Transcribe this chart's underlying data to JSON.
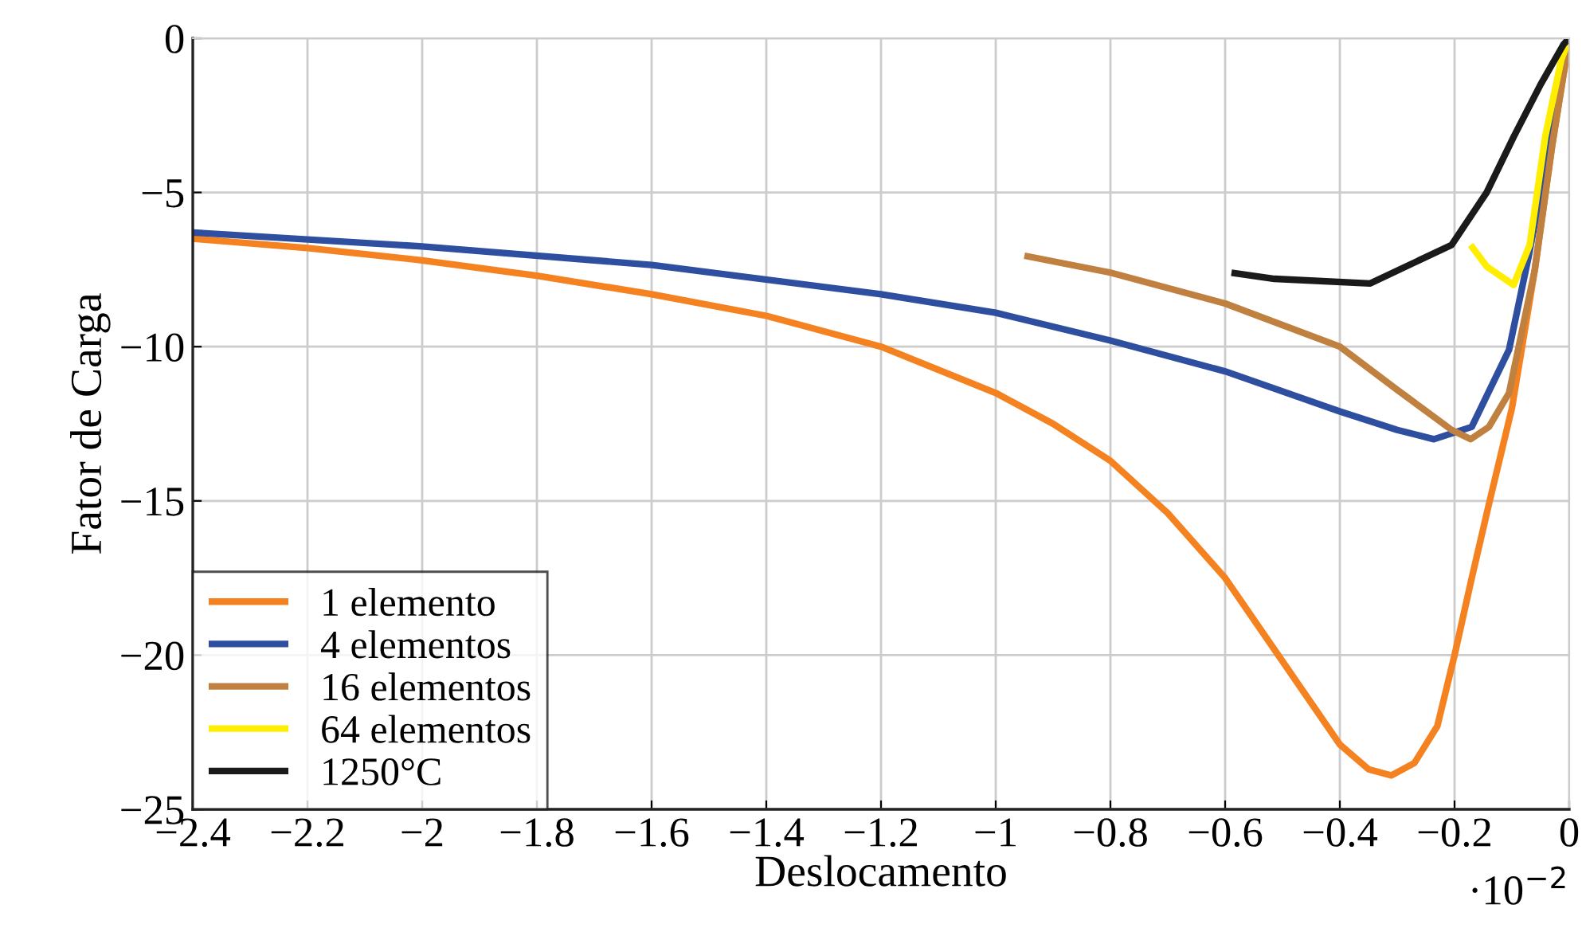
{
  "chart_data": {
    "type": "line",
    "xlabel": "Deslocamento",
    "ylabel": "Fator de Carga",
    "annotations": [
      "·10$^{−2}$"
    ],
    "xlim": [
      -2.4,
      0
    ],
    "ylim": [
      -25,
      0
    ],
    "xticks": [
      {
        "value": -2.4,
        "label": "−2.4"
      },
      {
        "value": -2.2,
        "label": "−2.2"
      },
      {
        "value": -2,
        "label": "−2"
      },
      {
        "value": -1.8,
        "label": "−1.8"
      },
      {
        "value": -1.6,
        "label": "−1.6"
      },
      {
        "value": -1.4,
        "label": "−1.4"
      },
      {
        "value": -1.2,
        "label": "−1.2"
      },
      {
        "value": -1,
        "label": "−1"
      },
      {
        "value": -0.8,
        "label": "−0.8"
      },
      {
        "value": -0.6,
        "label": "−0.6"
      },
      {
        "value": -0.4,
        "label": "−0.4"
      },
      {
        "value": -0.2,
        "label": "−0.2"
      },
      0
    ],
    "yticks": [
      {
        "value": -25,
        "label": "−25"
      },
      {
        "value": -20,
        "label": "−20"
      },
      {
        "value": -15,
        "label": "−15"
      },
      {
        "value": -10,
        "label": "−10"
      },
      {
        "value": -5,
        "label": "−5"
      },
      0
    ],
    "grid": true,
    "legend": "bottom left",
    "marker": "none",
    "line_style": "solid",
    "series": [
      {
        "name": "1 elemento",
        "color": "#f58220",
        "x": [
          -2.4,
          -2.2,
          -2.0,
          -1.8,
          -1.6,
          -1.4,
          -1.2,
          -1.0,
          -0.9,
          -0.8,
          -0.7,
          -0.6,
          -0.5,
          -0.4,
          -0.35,
          -0.31,
          -0.27,
          -0.23,
          -0.2,
          -0.17,
          -0.14,
          -0.1,
          -0.06,
          -0.03,
          0
        ],
        "values": [
          -6.5,
          -6.8,
          -7.2,
          -7.7,
          -8.3,
          -9.0,
          -10.0,
          -11.5,
          -12.5,
          -13.7,
          -15.4,
          -17.5,
          -20.2,
          -22.9,
          -23.7,
          -23.9,
          -23.5,
          -22.3,
          -20.0,
          -17.5,
          -15.1,
          -12.0,
          -7.5,
          -3.5,
          0
        ]
      },
      {
        "name": "4 elementos",
        "color": "#2e4fa0",
        "x": [
          -2.4,
          -2.0,
          -1.6,
          -1.2,
          -1.0,
          -0.8,
          -0.6,
          -0.4,
          -0.3,
          -0.236,
          -0.17,
          -0.105,
          -0.07,
          -0.03,
          0
        ],
        "values": [
          -6.3,
          -6.75,
          -7.35,
          -8.3,
          -8.9,
          -9.8,
          -10.8,
          -12.1,
          -12.7,
          -13.0,
          -12.6,
          -10.1,
          -7.0,
          -3.0,
          0
        ]
      },
      {
        "name": "16 elementos",
        "color": "#c08040",
        "x": [
          -0.95,
          -0.8,
          -0.6,
          -0.4,
          -0.3,
          -0.205,
          -0.172,
          -0.14,
          -0.105,
          -0.06,
          -0.03,
          0
        ],
        "values": [
          -7.05,
          -7.6,
          -8.6,
          -10.0,
          -11.4,
          -12.7,
          -13.0,
          -12.6,
          -11.5,
          -7.5,
          -3.5,
          0
        ]
      },
      {
        "name": "64 elementos",
        "color": "#ffee00",
        "x": [
          -0.172,
          -0.144,
          -0.097,
          -0.069,
          -0.042,
          -0.014,
          0
        ],
        "values": [
          -6.7,
          -7.4,
          -8.0,
          -6.7,
          -3.2,
          -0.7,
          0
        ]
      },
      {
        "name": "1250°C",
        "color": "#1a1a1a",
        "x": [
          -0.589,
          -0.514,
          -0.347,
          -0.205,
          -0.144,
          -0.097,
          -0.05,
          -0.01,
          0
        ],
        "values": [
          -7.6,
          -7.8,
          -7.95,
          -6.7,
          -5.0,
          -3.2,
          -1.5,
          -0.2,
          0
        ]
      }
    ]
  }
}
